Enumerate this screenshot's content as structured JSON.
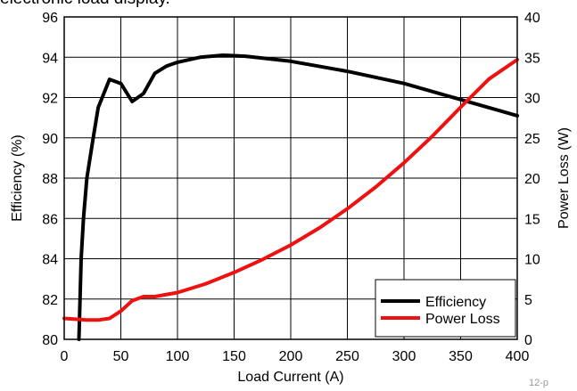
{
  "caption": "electronic load display.",
  "figure_id": "12-p",
  "chart_data": {
    "type": "line",
    "title": "",
    "xlabel": "Load Current (A)",
    "ylabel_left": "Efficiency (%)",
    "ylabel_right": "Power Loss (W)",
    "xlim": [
      0,
      400
    ],
    "ylim_left": [
      80,
      96
    ],
    "ylim_right": [
      0,
      40
    ],
    "x_ticks": [
      0,
      50,
      100,
      150,
      200,
      250,
      300,
      350,
      400
    ],
    "y_left_ticks": [
      80,
      82,
      84,
      86,
      88,
      90,
      92,
      94,
      96
    ],
    "y_right_ticks": [
      0,
      5,
      10,
      15,
      20,
      25,
      30,
      35,
      40
    ],
    "grid": true,
    "legend_position": "bottom-right",
    "series": [
      {
        "name": "Efficiency",
        "axis": "left",
        "color": "#000000",
        "x": [
          13,
          15,
          17,
          20,
          25,
          30,
          40,
          50,
          60,
          70,
          80,
          90,
          100,
          120,
          140,
          160,
          200,
          250,
          300,
          350,
          400
        ],
        "y": [
          80.0,
          84.0,
          86.0,
          88.0,
          89.8,
          91.5,
          92.9,
          92.7,
          91.8,
          92.2,
          93.2,
          93.55,
          93.75,
          94.0,
          94.1,
          94.05,
          93.8,
          93.3,
          92.7,
          91.9,
          91.1
        ]
      },
      {
        "name": "Power Loss",
        "axis": "right",
        "color": "#ee1111",
        "x": [
          0,
          10,
          20,
          30,
          40,
          50,
          60,
          70,
          80,
          100,
          125,
          150,
          175,
          200,
          225,
          250,
          275,
          300,
          325,
          350,
          375,
          400
        ],
        "y": [
          2.6,
          2.5,
          2.4,
          2.4,
          2.6,
          3.5,
          4.8,
          5.3,
          5.3,
          5.8,
          6.9,
          8.3,
          9.9,
          11.7,
          13.8,
          16.2,
          18.9,
          21.9,
          25.2,
          28.8,
          32.3,
          34.7
        ]
      }
    ]
  }
}
